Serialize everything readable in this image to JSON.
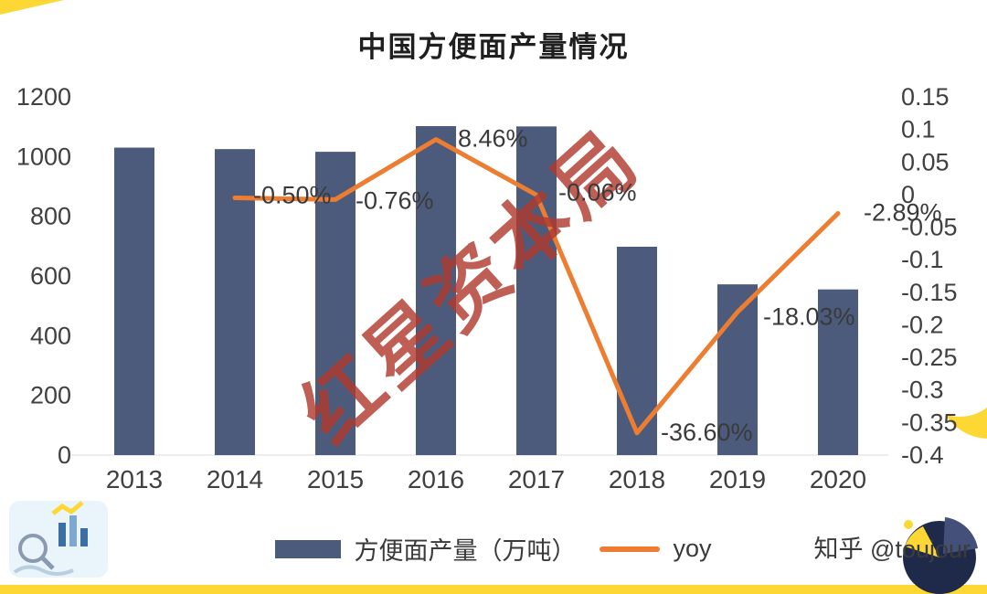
{
  "title": "中国方便面产量情况",
  "watermark": "红星资本局",
  "credit": "知乎 @toujour",
  "legend": {
    "bars": "方便面产量（万吨）",
    "line": "yoy"
  },
  "icons": {
    "bottom_left": "chart-doodle-icon",
    "bottom_right": "pie-chart-icon"
  },
  "colors": {
    "bar": "#4c5b7c",
    "line": "#ed7d31",
    "watermark": "#b03a2e",
    "accent_yellow": "#fdd835",
    "axis_text": "#404040",
    "label_text": "#3a3a3a"
  },
  "chart_data": {
    "type": "bar+line",
    "title": "中国方便面产量情况",
    "categories": [
      "2013",
      "2014",
      "2015",
      "2016",
      "2017",
      "2018",
      "2019",
      "2020"
    ],
    "series": [
      {
        "name": "方便面产量（万吨）",
        "type": "bar",
        "axis": "left",
        "values": [
          1030,
          1025,
          1016,
          1102,
          1101,
          698,
          572,
          555
        ]
      },
      {
        "name": "yoy",
        "type": "line",
        "axis": "right",
        "values": [
          null,
          -0.005,
          -0.0076,
          0.0846,
          -0.0006,
          -0.366,
          -0.1803,
          -0.0289
        ]
      }
    ],
    "point_labels": [
      null,
      "-0.50%",
      "-0.76%",
      "8.46%",
      "-0.06%",
      "-36.60%",
      "-18.03%",
      "-2.89%"
    ],
    "left_axis": {
      "min": 0,
      "max": 1200,
      "step": 200,
      "ticks": [
        0,
        200,
        400,
        600,
        800,
        1000,
        1200
      ]
    },
    "right_axis": {
      "min": -0.4,
      "max": 0.15,
      "step": 0.05,
      "ticks": [
        "0.15",
        "0.1",
        "0.05",
        "0",
        "-0.05",
        "-0.1",
        "-0.15",
        "-0.2",
        "-0.25",
        "-0.3",
        "-0.35",
        "-0.4"
      ]
    },
    "grid": false,
    "legend_position": "bottom"
  }
}
